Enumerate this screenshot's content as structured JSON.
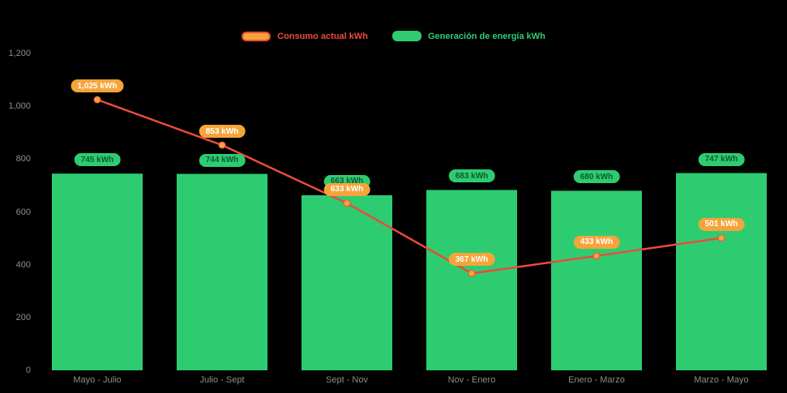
{
  "legend": {
    "consumption_label": "Consumo actual kWh",
    "generation_label": "Generación de energía kWh"
  },
  "colors": {
    "background": "#000000",
    "green": "#2ecc71",
    "orange": "#f6a43a",
    "red": "#ea4b3a",
    "axis_text": "#8e8e8e",
    "pill_green_text": "#0e5a2f"
  },
  "chart_data": {
    "type": "combo",
    "categories": [
      "Mayo - Julio",
      "Julio - Sept",
      "Sept - Nov",
      "Nov - Enero",
      "Enero - Marzo",
      "Marzo - Mayo"
    ],
    "series": [
      {
        "name": "Consumo actual kWh",
        "type": "line",
        "values": [
          1025,
          853,
          633,
          367,
          433,
          501
        ],
        "labels": [
          "1,025 kWh",
          "853 kWh",
          "633 kWh",
          "367 kWh",
          "433 kWh",
          "501 kWh"
        ],
        "color": "#ea4b3a",
        "marker_color": "#f6a43a"
      },
      {
        "name": "Generación de energía kWh",
        "type": "bar",
        "values": [
          745,
          744,
          663,
          683,
          680,
          747
        ],
        "labels": [
          "745 kWh",
          "744 kWh",
          "663 kWh",
          "683 kWh",
          "680 kWh",
          "747 kWh"
        ],
        "color": "#2ecc71"
      }
    ],
    "ylim": [
      0,
      1200
    ],
    "yticks": [
      0,
      200,
      400,
      600,
      800,
      1000,
      1200
    ],
    "ytick_labels": [
      "0",
      "200",
      "400",
      "600",
      "800",
      "1,000",
      "1,200"
    ],
    "grid": false,
    "legend_position": "top-center"
  }
}
